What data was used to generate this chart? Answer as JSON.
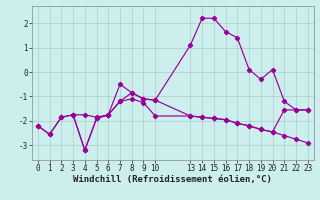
{
  "xlabel": "Windchill (Refroidissement éolien,°C)",
  "bg_color": "#cceeed",
  "line_color": "#990099",
  "grid_color": "#aacccc",
  "line1_x": [
    0,
    1,
    2,
    3,
    4,
    5,
    6,
    7,
    8,
    9,
    10,
    13,
    14,
    15,
    16,
    17,
    18,
    19,
    20,
    21,
    22,
    23
  ],
  "line1_y": [
    -2.2,
    -2.55,
    -1.85,
    -1.75,
    -1.75,
    -1.85,
    -1.75,
    -0.5,
    -0.85,
    -1.1,
    -1.15,
    1.1,
    2.2,
    2.2,
    1.65,
    1.4,
    0.1,
    -0.3,
    0.1,
    -1.2,
    -1.55,
    -1.55
  ],
  "line2_x": [
    0,
    1,
    2,
    3,
    4,
    5,
    6,
    7,
    8,
    9,
    10,
    13,
    14,
    15,
    16,
    17,
    18,
    19,
    20,
    21,
    22,
    23
  ],
  "line2_y": [
    -2.2,
    -2.55,
    -1.85,
    -1.75,
    -3.2,
    -1.9,
    -1.75,
    -1.2,
    -1.1,
    -1.25,
    -1.8,
    -1.8,
    -1.85,
    -1.9,
    -1.95,
    -2.1,
    -2.2,
    -2.35,
    -2.45,
    -2.6,
    -2.75,
    -2.9
  ],
  "line3_x": [
    3,
    4,
    5,
    6,
    7,
    8,
    9,
    10,
    13,
    14,
    15,
    16,
    17,
    18,
    19,
    20,
    21,
    22,
    23
  ],
  "line3_y": [
    -1.75,
    -3.2,
    -1.9,
    -1.75,
    -1.2,
    -0.85,
    -1.1,
    -1.15,
    -1.8,
    -1.85,
    -1.9,
    -1.95,
    -2.1,
    -2.2,
    -2.35,
    -2.45,
    -1.55,
    -1.55,
    -1.55
  ],
  "xlim": [
    -0.5,
    23.5
  ],
  "ylim": [
    -3.6,
    2.7
  ],
  "yticks": [
    -3,
    -2,
    -1,
    0,
    1,
    2
  ],
  "xticks": [
    0,
    1,
    2,
    3,
    4,
    5,
    6,
    7,
    8,
    9,
    10,
    13,
    14,
    15,
    16,
    17,
    18,
    19,
    20,
    21,
    22,
    23
  ],
  "tick_fontsize": 5.5,
  "xlabel_fontsize": 6.5
}
